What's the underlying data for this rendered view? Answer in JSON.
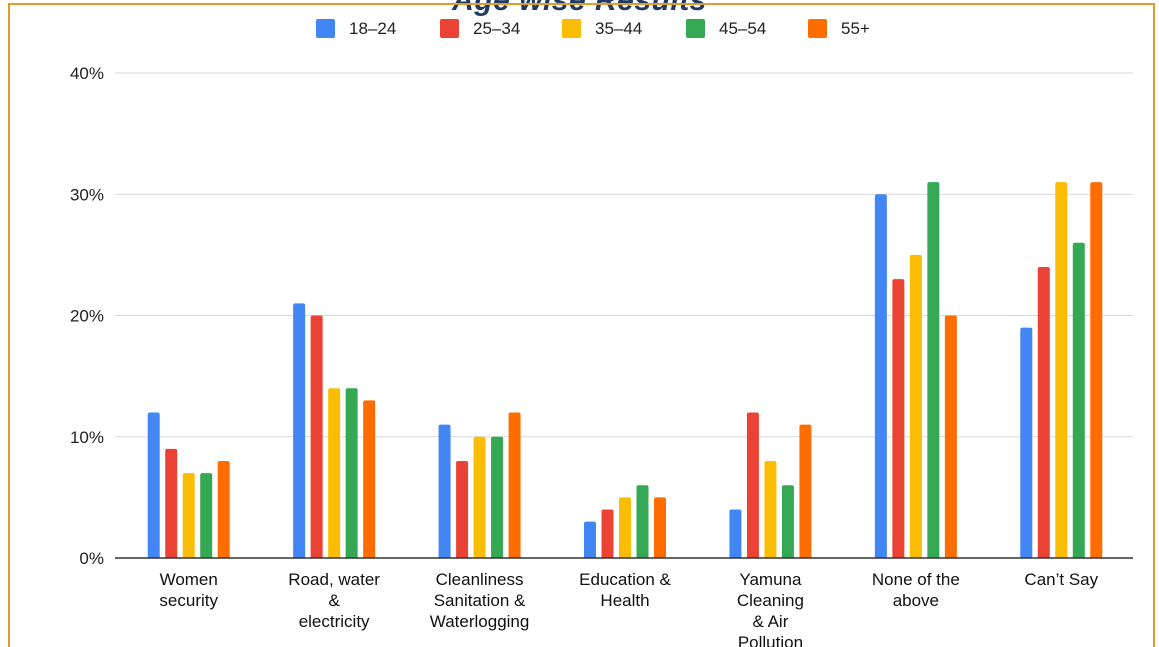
{
  "title": "Age wise Results",
  "chart_data": {
    "type": "bar",
    "categories": [
      [
        "Women",
        "security"
      ],
      [
        "Road, water",
        "&",
        "electricity"
      ],
      [
        "Cleanliness",
        "Sanitation &",
        "Waterlogging"
      ],
      [
        "Education &",
        "Health"
      ],
      [
        "Yamuna",
        "Cleaning",
        "& Air",
        "Pollution"
      ],
      [
        "None of the",
        "above"
      ],
      [
        "Can’t Say"
      ]
    ],
    "series": [
      {
        "name": "18–24",
        "color": "#4285f4",
        "values": [
          12,
          21,
          11,
          3,
          4,
          30,
          19
        ]
      },
      {
        "name": "25–34",
        "color": "#ea4335",
        "values": [
          9,
          20,
          8,
          4,
          12,
          23,
          24
        ]
      },
      {
        "name": "35–44",
        "color": "#fbbc04",
        "values": [
          7,
          14,
          10,
          5,
          8,
          25,
          31
        ]
      },
      {
        "name": "45–54",
        "color": "#34a853",
        "values": [
          7,
          14,
          10,
          6,
          6,
          31,
          26
        ]
      },
      {
        "name": "55+",
        "color": "#ff6d01",
        "values": [
          8,
          13,
          12,
          5,
          11,
          20,
          31
        ]
      }
    ],
    "yticks": [
      "0%",
      "10%",
      "20%",
      "30%",
      "40%"
    ],
    "ylim": [
      0,
      40
    ],
    "grid": true,
    "legend_position": "top"
  }
}
